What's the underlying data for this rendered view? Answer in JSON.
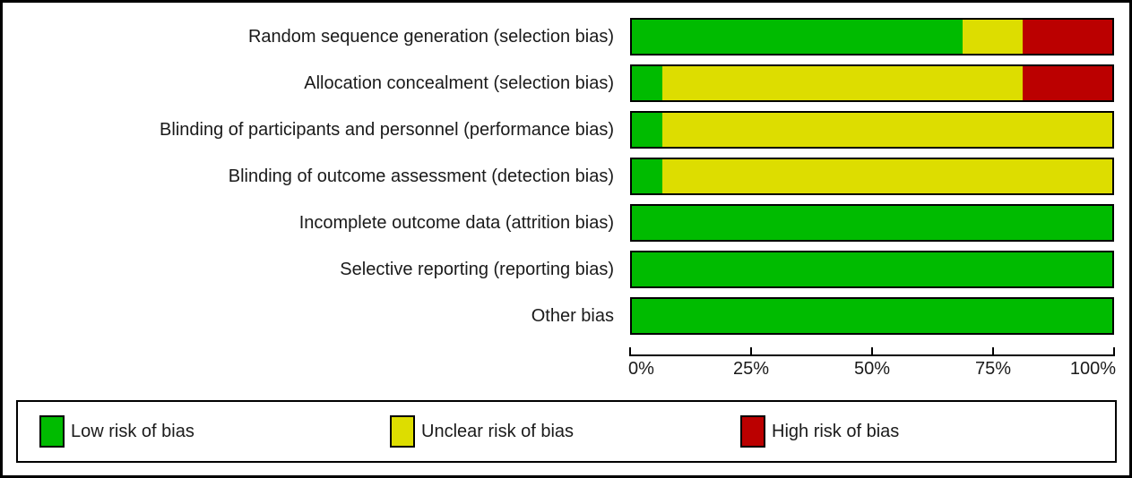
{
  "colors": {
    "low": "#00bb00",
    "unclear": "#dddd00",
    "high": "#bb0000",
    "border": "#000000",
    "text": "#1a1a1a"
  },
  "chart_data": {
    "type": "bar",
    "orientation": "horizontal-stacked",
    "title": "",
    "xlabel": "",
    "ylabel": "",
    "xlim": [
      0,
      100
    ],
    "grid": false,
    "x_ticks": [
      {
        "label": "0%",
        "value": 0
      },
      {
        "label": "25%",
        "value": 25
      },
      {
        "label": "50%",
        "value": 50
      },
      {
        "label": "75%",
        "value": 75
      },
      {
        "label": "100%",
        "value": 100
      }
    ],
    "categories": [
      "Random sequence generation (selection bias)",
      "Allocation concealment (selection bias)",
      "Blinding of participants and personnel (performance bias)",
      "Blinding of outcome assessment (detection bias)",
      "Incomplete outcome data (attrition bias)",
      "Selective reporting (reporting bias)",
      "Other bias"
    ],
    "series": [
      {
        "name": "Low risk of bias",
        "color_key": "low",
        "values": [
          68.75,
          6.25,
          6.25,
          6.25,
          100,
          100,
          100
        ]
      },
      {
        "name": "Unclear risk of bias",
        "color_key": "unclear",
        "values": [
          12.5,
          75,
          93.75,
          93.75,
          0,
          0,
          0
        ]
      },
      {
        "name": "High risk of bias",
        "color_key": "high",
        "values": [
          18.75,
          18.75,
          0,
          0,
          0,
          0,
          0
        ]
      }
    ],
    "legend_position": "bottom"
  },
  "legend": {
    "items": [
      {
        "label": "Low risk of bias",
        "color_key": "low",
        "x": 24
      },
      {
        "label": "Unclear risk of bias",
        "color_key": "unclear",
        "x": 415
      },
      {
        "label": "High risk of bias",
        "color_key": "high",
        "x": 806
      }
    ]
  }
}
